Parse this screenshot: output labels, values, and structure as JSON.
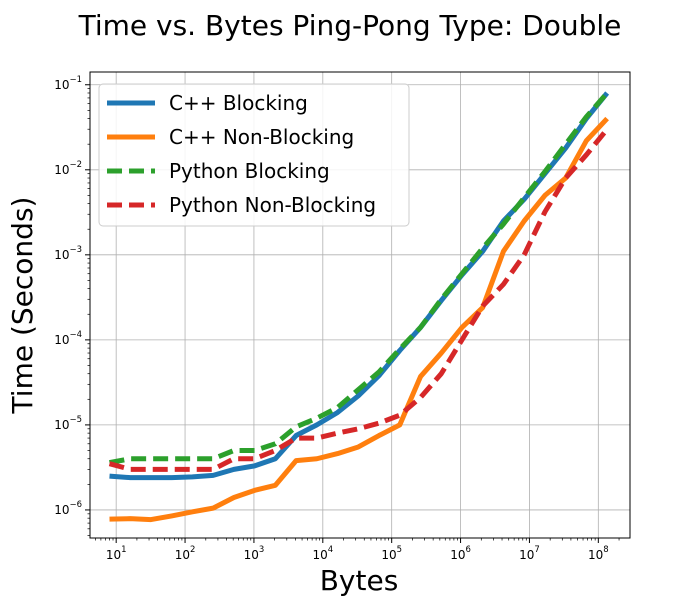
{
  "chart_data": {
    "type": "line",
    "title": "Time vs. Bytes Ping-Pong Type: Double",
    "xlabel": "Bytes",
    "ylabel": "Time (Seconds)",
    "xscale": "log",
    "yscale": "log",
    "xlim_exp": [
      0.62,
      8.46
    ],
    "ylim_exp": [
      -6.33,
      -0.85
    ],
    "x_ticks": [
      {
        "base": "10",
        "exp": "1",
        "value": 10
      },
      {
        "base": "10",
        "exp": "2",
        "value": 100
      },
      {
        "base": "10",
        "exp": "3",
        "value": 1000
      },
      {
        "base": "10",
        "exp": "4",
        "value": 10000
      },
      {
        "base": "10",
        "exp": "5",
        "value": 100000
      },
      {
        "base": "10",
        "exp": "6",
        "value": 1000000
      },
      {
        "base": "10",
        "exp": "7",
        "value": 10000000
      },
      {
        "base": "10",
        "exp": "8",
        "value": 100000000
      }
    ],
    "y_ticks": [
      {
        "base": "10",
        "exp": "−6",
        "value": 1e-06
      },
      {
        "base": "10",
        "exp": "−5",
        "value": 1e-05
      },
      {
        "base": "10",
        "exp": "−4",
        "value": 0.0001
      },
      {
        "base": "10",
        "exp": "−3",
        "value": 0.001
      },
      {
        "base": "10",
        "exp": "−2",
        "value": 0.01
      },
      {
        "base": "10",
        "exp": "−1",
        "value": 0.1
      }
    ],
    "grid": true,
    "legend_position": "upper-left",
    "x": [
      8,
      16,
      32,
      64,
      128,
      256,
      512,
      1024,
      2048,
      4096,
      8192,
      16384,
      32768,
      65536,
      131072,
      262144,
      524288,
      1048576,
      2097152,
      4194304,
      8388608,
      16777216,
      33554432,
      67108864,
      134217728
    ],
    "series": [
      {
        "name": "C++ Blocking",
        "color": "#1f77b4",
        "style": "solid",
        "values": [
          2.5e-06,
          2.4e-06,
          2.4e-06,
          2.4e-06,
          2.45e-06,
          2.55e-06,
          3e-06,
          3.3e-06,
          4e-06,
          7.5e-06,
          1e-05,
          1.4e-05,
          2.2e-05,
          3.8e-05,
          7.5e-05,
          0.00014,
          0.00029,
          0.00058,
          0.0011,
          0.0025,
          0.0045,
          0.009,
          0.018,
          0.04,
          0.08
        ]
      },
      {
        "name": "C++ Non-Blocking",
        "color": "#ff7f0e",
        "style": "solid",
        "values": [
          7.8e-07,
          7.9e-07,
          7.7e-07,
          8.5e-07,
          9.5e-07,
          1.05e-06,
          1.4e-06,
          1.7e-06,
          1.95e-06,
          3.8e-06,
          4e-06,
          4.6e-06,
          5.5e-06,
          7.5e-06,
          1e-05,
          3.7e-05,
          7e-05,
          0.00014,
          0.00024,
          0.0011,
          0.0025,
          0.005,
          0.008,
          0.022,
          0.04
        ]
      },
      {
        "name": "Python Blocking",
        "color": "#2ca02c",
        "style": "dashed",
        "values": [
          3.6e-06,
          4e-06,
          4e-06,
          4e-06,
          4e-06,
          4e-06,
          5e-06,
          5e-06,
          6e-06,
          9.5e-06,
          1.2e-05,
          1.6e-05,
          2.6e-05,
          4.2e-05,
          7.8e-05,
          0.00014,
          0.0003,
          0.0006,
          0.0012,
          0.0023,
          0.0047,
          0.0095,
          0.02,
          0.042,
          0.08
        ]
      },
      {
        "name": "Python Non-Blocking",
        "color": "#d62728",
        "style": "dashed",
        "values": [
          3.5e-06,
          3e-06,
          3e-06,
          3e-06,
          3e-06,
          3e-06,
          4e-06,
          4e-06,
          5e-06,
          7e-06,
          7e-06,
          8e-06,
          9e-06,
          1.05e-05,
          1.3e-05,
          2.1e-05,
          4e-05,
          0.0001,
          0.00025,
          0.00045,
          0.001,
          0.0032,
          0.008,
          0.015,
          0.03
        ]
      }
    ]
  }
}
